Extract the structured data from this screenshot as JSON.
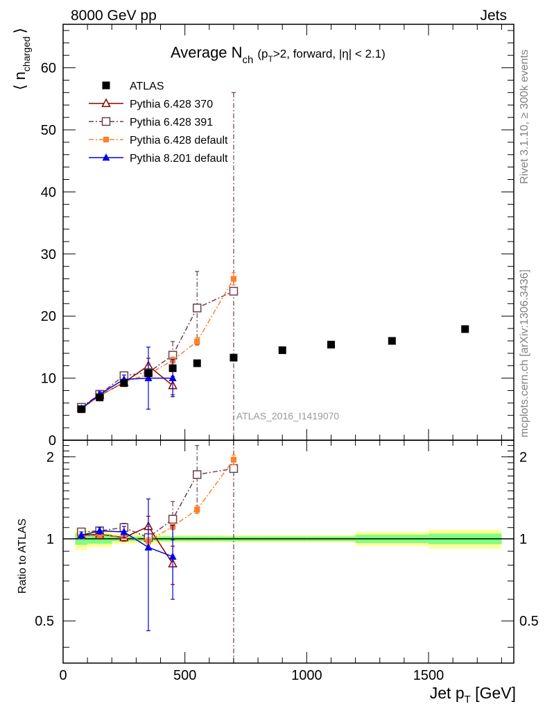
{
  "header": {
    "left": "8000 GeV pp",
    "right": "Jets",
    "rivet": "Rivet 3.1.10, ≥ 300k events",
    "mcplots": "mcplots.cern.ch [arXiv:1306.3436]",
    "analysis": "ATLAS_2016_I1419070"
  },
  "title": {
    "main": "Average N",
    "main_sub": "ch",
    "detail_pre": "(p",
    "detail_sub": "T",
    "detail_post": ">2, forward, |η| < 2.1)"
  },
  "axes": {
    "ylabel_main": "⟨ n",
    "ylabel_main_sub": "charged",
    "ylabel_main_close": "⟩",
    "ylabel_ratio": "Ratio to ATLAS",
    "xlabel": "Jet p",
    "xlabel_sub": "T",
    "xlabel_unit": " [GeV]"
  },
  "colors": {
    "atlas": "#000000",
    "p370": "#8b0000",
    "p391": "#6b3d4f",
    "p6def": "#ff7f2a",
    "p8def": "#0000e6",
    "band_inner": "#80ff80",
    "band_outer": "#ffff99",
    "analysis_text": "#999999",
    "side_text": "#808080"
  },
  "chart_data": [
    {
      "type": "scatter",
      "panel": "main",
      "xlim": [
        0,
        1850
      ],
      "ylim": [
        0,
        67
      ],
      "yticks": [
        0,
        10,
        20,
        30,
        40,
        50,
        60
      ],
      "xticks": [
        0,
        500,
        1000,
        1500
      ],
      "xtick_labels": [
        "0",
        "500",
        "1000",
        "1500"
      ],
      "ytick_labels": [
        "0",
        "10",
        "20",
        "30",
        "40",
        "50",
        "60"
      ],
      "series": [
        {
          "name": "ATLAS",
          "key": "atlas",
          "marker": "square-filled",
          "line": "none",
          "x": [
            75,
            150,
            250,
            350,
            450,
            550,
            700,
            900,
            1100,
            1350,
            1650
          ],
          "y": [
            5.0,
            6.9,
            9.2,
            10.8,
            11.6,
            12.4,
            13.3,
            14.5,
            15.4,
            16.0,
            17.9
          ],
          "err": [
            0.3,
            0.3,
            0.3,
            0.3,
            0.3,
            0.3,
            0.3,
            0.3,
            0.3,
            0.4,
            0.5
          ]
        },
        {
          "name": "Pythia 6.428 370",
          "key": "p370",
          "marker": "triangle-open",
          "line": "solid",
          "x": [
            75,
            150,
            250,
            350,
            450
          ],
          "y": [
            5.1,
            7.2,
            9.3,
            12.0,
            8.8
          ],
          "err": [
            0.3,
            0.4,
            0.5,
            1.2,
            1.5
          ]
        },
        {
          "name": "Pythia 6.428 391",
          "key": "p391",
          "marker": "square-open",
          "line": "dashdot",
          "x": [
            75,
            150,
            250,
            350,
            450,
            550,
            700
          ],
          "y": [
            5.3,
            7.4,
            10.4,
            10.9,
            13.7,
            21.3,
            24.0
          ],
          "err": [
            0.3,
            0.4,
            0.6,
            1.2,
            2.2,
            5.9,
            32.0
          ]
        },
        {
          "name": "Pythia 6.428 default",
          "key": "p6def",
          "marker": "square-small-filled",
          "line": "dashdot",
          "x": [
            75,
            150,
            250,
            350,
            450,
            550,
            700
          ],
          "y": [
            5.1,
            7.1,
            9.4,
            10.6,
            12.9,
            15.9,
            26.0
          ],
          "err": [
            0.2,
            0.3,
            0.4,
            0.5,
            0.5,
            0.6,
            1.0
          ]
        },
        {
          "name": "Pythia 8.201 default",
          "key": "p8def",
          "marker": "triangle-filled",
          "line": "solid",
          "x": [
            75,
            150,
            250,
            350,
            450
          ],
          "y": [
            5.1,
            7.4,
            9.8,
            10.0,
            10.0
          ],
          "err": [
            0.3,
            0.4,
            0.7,
            5.0,
            3.0
          ]
        }
      ]
    },
    {
      "type": "scatter",
      "panel": "ratio",
      "xlim": [
        0,
        1850
      ],
      "ylim": [
        0.35,
        2.3
      ],
      "yticks": [
        0.5,
        1,
        2
      ],
      "ytick_labels": [
        "0.5",
        "1",
        "2"
      ],
      "band": [
        {
          "x0": 50,
          "x1": 100,
          "inner": 0.05,
          "outer": 0.09
        },
        {
          "x0": 100,
          "x1": 200,
          "inner": 0.04,
          "outer": 0.07
        },
        {
          "x0": 200,
          "x1": 300,
          "inner": 0.02,
          "outer": 0.04
        },
        {
          "x0": 300,
          "x1": 400,
          "inner": 0.02,
          "outer": 0.04
        },
        {
          "x0": 400,
          "x1": 500,
          "inner": 0.02,
          "outer": 0.03
        },
        {
          "x0": 500,
          "x1": 600,
          "inner": 0.02,
          "outer": 0.03
        },
        {
          "x0": 600,
          "x1": 800,
          "inner": 0.02,
          "outer": 0.03
        },
        {
          "x0": 800,
          "x1": 1000,
          "inner": 0.02,
          "outer": 0.03
        },
        {
          "x0": 1000,
          "x1": 1200,
          "inner": 0.02,
          "outer": 0.03
        },
        {
          "x0": 1200,
          "x1": 1500,
          "inner": 0.035,
          "outer": 0.06
        },
        {
          "x0": 1500,
          "x1": 1800,
          "inner": 0.045,
          "outer": 0.08
        }
      ],
      "series": [
        {
          "name": "Pythia 6.428 370",
          "key": "p370",
          "x": [
            75,
            150,
            250,
            350,
            450
          ],
          "y": [
            1.03,
            1.04,
            1.01,
            1.11,
            0.81
          ],
          "err": [
            0.03,
            0.03,
            0.03,
            0.1,
            0.13
          ]
        },
        {
          "name": "Pythia 6.428 391",
          "key": "p391",
          "x": [
            75,
            150,
            250,
            350,
            450,
            550,
            700
          ],
          "y": [
            1.06,
            1.07,
            1.1,
            1.01,
            1.18,
            1.72,
            1.81
          ],
          "err": [
            0.03,
            0.03,
            0.04,
            0.1,
            0.19,
            0.48,
            2.4
          ]
        },
        {
          "name": "Pythia 6.428 default",
          "key": "p6def",
          "x": [
            75,
            150,
            250,
            350,
            450,
            550,
            700
          ],
          "y": [
            1.02,
            1.03,
            1.02,
            0.98,
            1.11,
            1.28,
            1.95
          ],
          "err": [
            0.02,
            0.02,
            0.02,
            0.03,
            0.03,
            0.04,
            0.08
          ]
        },
        {
          "name": "Pythia 8.201 default",
          "key": "p8def",
          "x": [
            75,
            150,
            250,
            350,
            450
          ],
          "y": [
            1.03,
            1.07,
            1.06,
            0.93,
            0.86
          ],
          "err": [
            0.03,
            0.03,
            0.05,
            0.47,
            0.26
          ]
        }
      ]
    }
  ]
}
